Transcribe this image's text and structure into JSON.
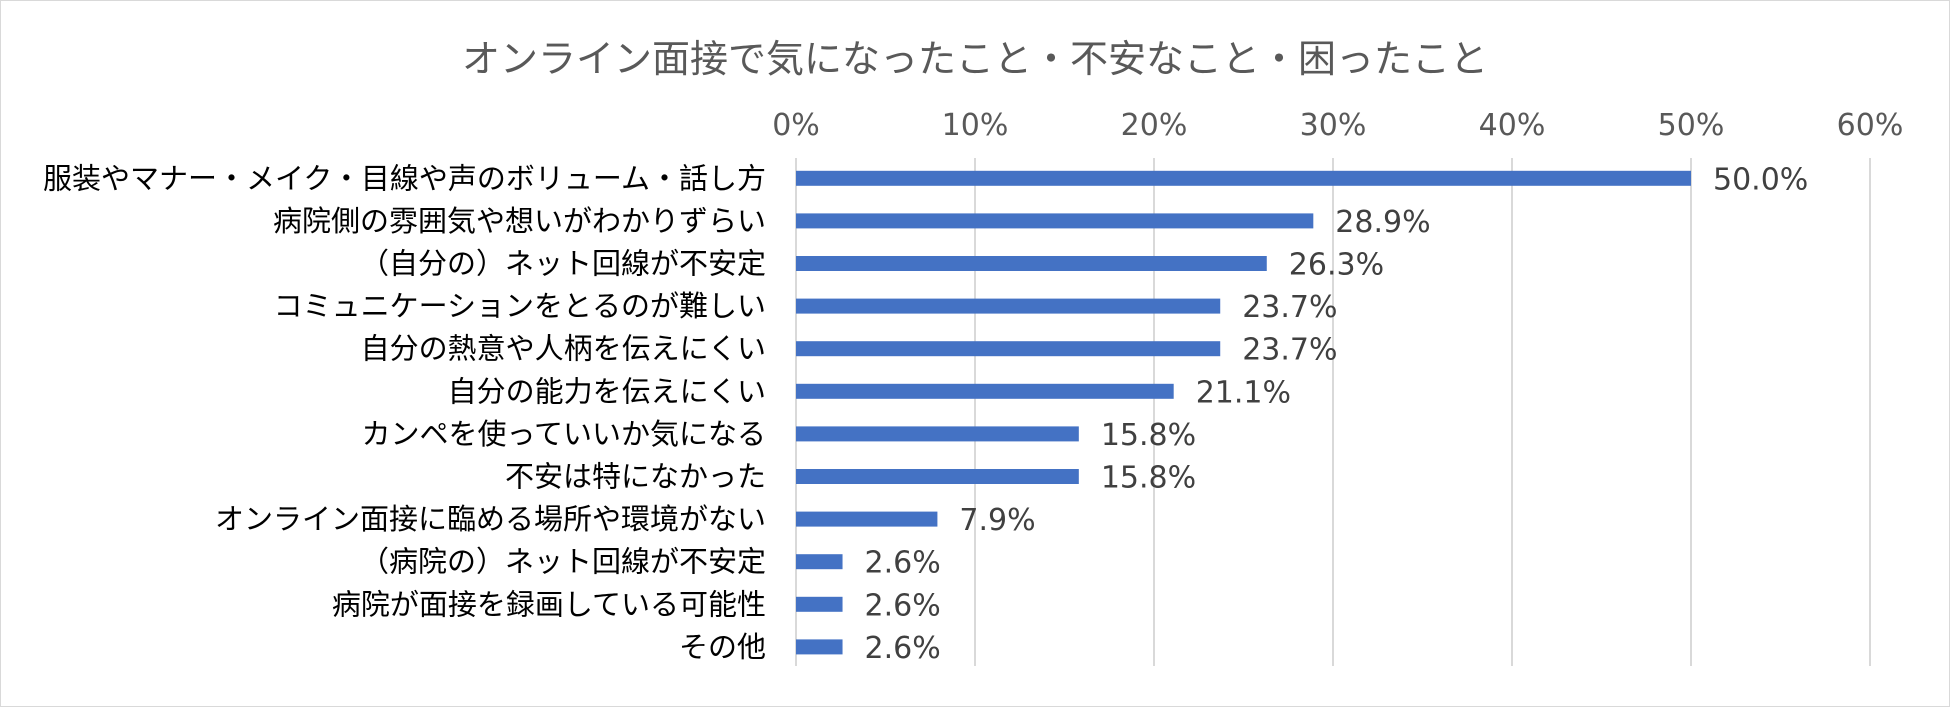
{
  "chart_data": {
    "type": "bar",
    "orientation": "horizontal",
    "title": "オンライン面接で気になったこと・不安なこと・困ったこと",
    "categories": [
      "服装やマナー・メイク・目線や声のボリューム・話し方",
      "病院側の雰囲気や想いがわかりずらい",
      "（自分の）ネット回線が不安定",
      "コミュニケーションをとるのが難しい",
      "自分の熱意や人柄を伝えにくい",
      "自分の能力を伝えにくい",
      "カンペを使っていいか気になる",
      "不安は特になかった",
      "オンライン面接に臨める場所や環境がない",
      "（病院の）ネット回線が不安定",
      "病院が面接を録画している可能性",
      "その他"
    ],
    "values": [
      50.0,
      28.9,
      26.3,
      23.7,
      23.7,
      21.1,
      15.8,
      15.8,
      7.9,
      2.6,
      2.6,
      2.6
    ],
    "data_labels": [
      "50.0%",
      "28.9%",
      "26.3%",
      "23.7%",
      "23.7%",
      "21.1%",
      "15.8%",
      "15.8%",
      "7.9%",
      "2.6%",
      "2.6%",
      "2.6%"
    ],
    "xlim": [
      0,
      60
    ],
    "x_ticks": [
      "0%",
      "10%",
      "20%",
      "30%",
      "40%",
      "50%",
      "60%"
    ],
    "x_axis_position": "top",
    "grid": true,
    "legend": false,
    "bar_color": "#4472C4",
    "grid_color": "#d9d9d9"
  }
}
